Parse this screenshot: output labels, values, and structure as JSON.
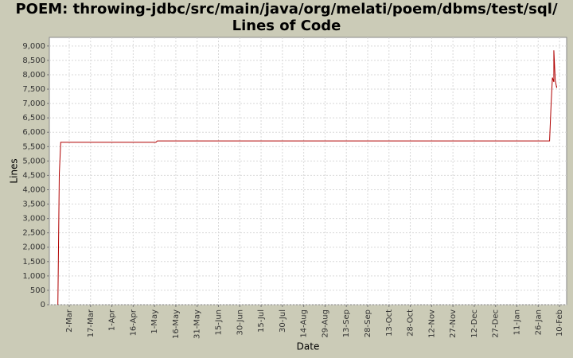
{
  "chart_data": {
    "type": "line",
    "title": "POEM: throwing-jdbc/src/main/java/org/melati/poem/dbms/test/sql/",
    "subtitle": "Lines of Code",
    "x_label": "Date",
    "y_label": "Lines",
    "x": [
      "22-Feb",
      "23-Feb",
      "24-Feb",
      "2-May",
      "3-May",
      "3-Feb",
      "4-Feb",
      "5-Feb",
      "6-Feb",
      "6-Feb",
      "7-Feb",
      "8-Feb",
      "8-Feb"
    ],
    "series": [
      {
        "name": "Lines",
        "color": "#b00000",
        "values": [
          0,
          4550,
          5650,
          5650,
          5700,
          5700,
          6900,
          7900,
          7750,
          8850,
          7800,
          7550,
          7600
        ]
      }
    ],
    "xlim": [
      "16-Feb",
      "15-Feb"
    ],
    "xticks": [
      "2-Mar",
      "17-Mar",
      "1-Apr",
      "16-Apr",
      "1-May",
      "16-May",
      "31-May",
      "15-Jun",
      "30-Jun",
      "15-Jul",
      "30-Jul",
      "14-Aug",
      "29-Aug",
      "13-Sep",
      "28-Sep",
      "13-Oct",
      "28-Oct",
      "12-Nov",
      "27-Nov",
      "12-Dec",
      "27-Dec",
      "11-Jan",
      "26-Jan",
      "10-Feb"
    ],
    "ylim": [
      0,
      9300
    ],
    "yticks": [
      0,
      500,
      {
        "value": 1000,
        "label": "1,000"
      },
      {
        "value": 1500,
        "label": "1,500"
      },
      {
        "value": 2000,
        "label": "2,000"
      },
      {
        "value": 2500,
        "label": "2,500"
      },
      {
        "value": 3000,
        "label": "3,000"
      },
      {
        "value": 3500,
        "label": "3,500"
      },
      {
        "value": 4000,
        "label": "4,000"
      },
      {
        "value": 4500,
        "label": "4,500"
      },
      {
        "value": 5000,
        "label": "5,000"
      },
      {
        "value": 5500,
        "label": "5,500"
      },
      {
        "value": 6000,
        "label": "6,000"
      },
      {
        "value": 6500,
        "label": "6,500"
      },
      {
        "value": 7000,
        "label": "7,000"
      },
      {
        "value": 7500,
        "label": "7,500"
      },
      {
        "value": 8000,
        "label": "8,000"
      },
      {
        "value": 8500,
        "label": "8,500"
      },
      {
        "value": 9000,
        "label": "9,000"
      }
    ],
    "grid": true
  }
}
